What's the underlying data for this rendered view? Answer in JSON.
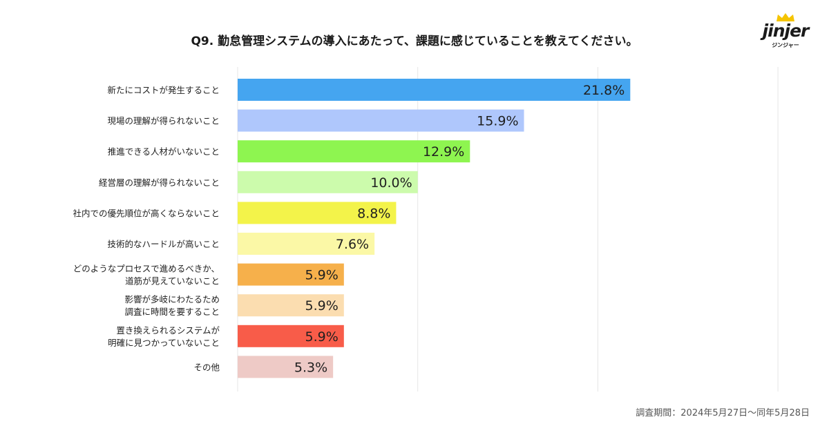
{
  "title": "Q9. 勤怠管理システムの導入にあたって、課題に感じていることを教えてください。",
  "logo": {
    "text": "jinjer",
    "kana": "ジンジャー"
  },
  "footnote": "調査期間：2024年5月27日〜同年5月28日",
  "chart_data": {
    "type": "bar",
    "orientation": "horizontal",
    "title": "Q9. 勤怠管理システムの導入にあたって、課題に感じていることを教えてください。",
    "xlim": [
      0,
      30
    ],
    "grid": true,
    "unit": "%",
    "categories": [
      [
        "新たにコストが発生すること"
      ],
      [
        "現場の理解が得られないこと"
      ],
      [
        "推進できる人材がいないこと"
      ],
      [
        "経営層の理解が得られないこと"
      ],
      [
        "社内での優先順位が高くならないこと"
      ],
      [
        "技術的なハードルが高いこと"
      ],
      [
        "どのようなプロセスで進めるべきか、",
        "道筋が見えていないこと"
      ],
      [
        "影響が多岐にわたるため",
        "調査に時間を要すること"
      ],
      [
        "置き換えられるシステムが",
        "明確に見つかっていないこと"
      ],
      [
        "その他"
      ]
    ],
    "values": [
      21.8,
      15.9,
      12.9,
      10.0,
      8.8,
      7.6,
      5.9,
      5.9,
      5.9,
      5.3
    ],
    "value_labels": [
      "21.8%",
      "15.9%",
      "12.9%",
      "10.0%",
      "8.8%",
      "7.6%",
      "5.9%",
      "5.9%",
      "5.9%",
      "5.3%"
    ],
    "colors": [
      "#45A5F0",
      "#AFC7FC",
      "#8EF550",
      "#CCFBAC",
      "#F3F34A",
      "#FBF8A6",
      "#F6B04B",
      "#FBDDB0",
      "#F85C49",
      "#EECAC6"
    ]
  }
}
